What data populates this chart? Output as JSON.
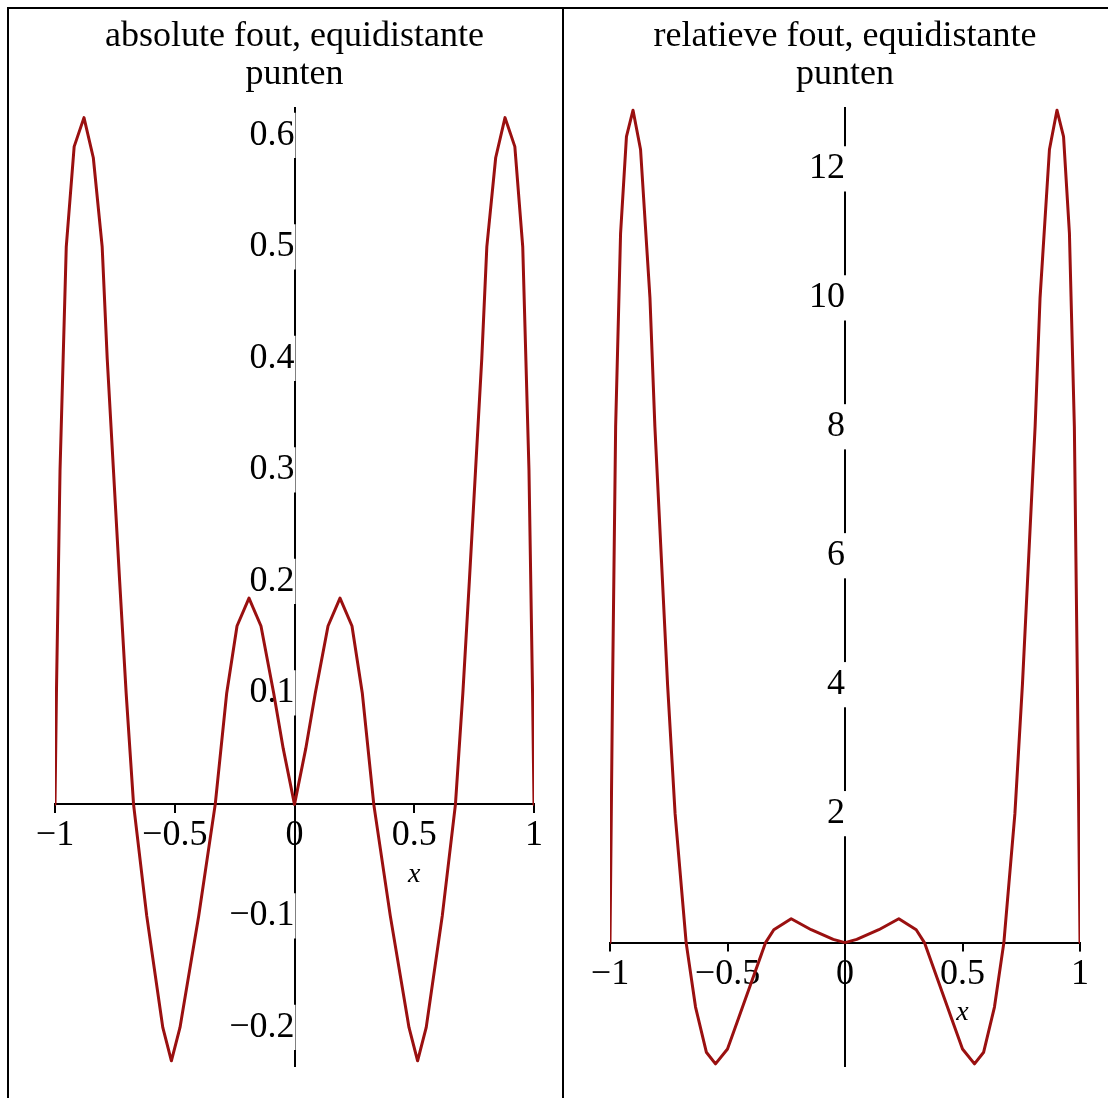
{
  "chart_data": [
    {
      "type": "line",
      "title": "absolute fout, equidistante punten",
      "xlabel": "x",
      "color": "#9a1010",
      "marker": "none",
      "grid": false,
      "x": [
        -1,
        -0.994,
        -0.979,
        -0.953,
        -0.92,
        -0.879,
        -0.84,
        -0.803,
        -0.782,
        -0.756,
        -0.73,
        -0.703,
        -0.672,
        -0.617,
        -0.55,
        -0.514,
        -0.478,
        -0.4,
        -0.331,
        -0.283,
        -0.24,
        -0.19,
        -0.14,
        -0.087,
        -0.047,
        0,
        0.047,
        0.087,
        0.14,
        0.19,
        0.24,
        0.283,
        0.331,
        0.4,
        0.478,
        0.514,
        0.55,
        0.617,
        0.672,
        0.703,
        0.73,
        0.756,
        0.782,
        0.803,
        0.84,
        0.879,
        0.92,
        0.953,
        0.979,
        0.994,
        1
      ],
      "values": [
        0,
        0.1,
        0.3,
        0.5,
        0.59,
        0.616,
        0.58,
        0.5,
        0.4,
        0.3,
        0.2,
        0.1,
        0,
        -0.1,
        -0.2,
        -0.23,
        -0.2,
        -0.1,
        0,
        0.1,
        0.16,
        0.185,
        0.16,
        0.1,
        0.05,
        0,
        0.05,
        0.1,
        0.16,
        0.185,
        0.16,
        0.1,
        0,
        -0.1,
        -0.2,
        -0.23,
        -0.2,
        -0.1,
        0,
        0.1,
        0.2,
        0.3,
        0.4,
        0.5,
        0.58,
        0.616,
        0.59,
        0.5,
        0.3,
        0.1,
        0
      ],
      "xlim": [
        -1,
        1
      ],
      "xticks": [
        -1,
        -0.5,
        0,
        0.5,
        1
      ],
      "ylim": [
        -0.235,
        0.625
      ],
      "yticks": [
        -0.2,
        -0.1,
        0.1,
        0.2,
        0.3,
        0.4,
        0.5,
        0.6
      ]
    },
    {
      "type": "line",
      "title": "relatieve fout, equidistante punten",
      "xlabel": "x",
      "color": "#9a1010",
      "marker": "none",
      "grid": false,
      "x": [
        -1,
        -0.989,
        -0.976,
        -0.955,
        -0.93,
        -0.902,
        -0.87,
        -0.83,
        -0.809,
        -0.782,
        -0.755,
        -0.723,
        -0.676,
        -0.636,
        -0.59,
        -0.551,
        -0.5,
        -0.436,
        -0.338,
        -0.303,
        -0.229,
        -0.144,
        -0.05,
        0,
        0.05,
        0.144,
        0.229,
        0.303,
        0.338,
        0.436,
        0.5,
        0.551,
        0.59,
        0.636,
        0.676,
        0.723,
        0.755,
        0.782,
        0.809,
        0.83,
        0.87,
        0.902,
        0.93,
        0.955,
        0.976,
        0.989,
        1
      ],
      "values": [
        0,
        4,
        8,
        11,
        12.5,
        12.91,
        12.3,
        10,
        8,
        6,
        4,
        2,
        0,
        -1,
        -1.7,
        -1.88,
        -1.65,
        -1,
        0,
        0.2,
        0.37,
        0.2,
        0.05,
        0,
        0.05,
        0.2,
        0.37,
        0.2,
        0,
        -1,
        -1.65,
        -1.88,
        -1.7,
        -1,
        0,
        2,
        4,
        6,
        8,
        10,
        12.3,
        12.91,
        12.5,
        11,
        8,
        4,
        0
      ],
      "xlim": [
        -1,
        1
      ],
      "xticks": [
        -1,
        -0.5,
        0,
        0.5,
        1
      ],
      "ylim": [
        -1.92,
        12.95
      ],
      "yticks": [
        2,
        4,
        6,
        8,
        10,
        12
      ]
    }
  ]
}
